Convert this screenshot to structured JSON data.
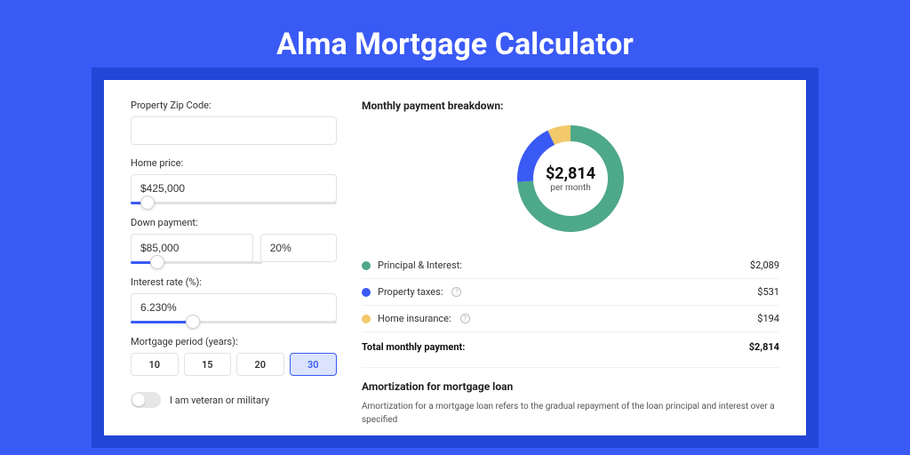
{
  "page": {
    "title": "Alma Mortgage Calculator",
    "background_color": "#3a5af5",
    "card_shadow_color": "#2446d6"
  },
  "form": {
    "zip_label": "Property Zip Code:",
    "zip_value": "",
    "home_price_label": "Home price:",
    "home_price_value": "$425,000",
    "home_price_slider_pct": 8,
    "down_payment_label": "Down payment:",
    "down_payment_amount": "$85,000",
    "down_payment_pct": "20%",
    "down_payment_slider_pct": 20,
    "interest_label": "Interest rate (%):",
    "interest_value": "6.230%",
    "interest_slider_pct": 30,
    "period_label": "Mortgage period (years):",
    "period_options": [
      "10",
      "15",
      "20",
      "30"
    ],
    "period_selected": "30",
    "veteran_label": "I am veteran or military",
    "veteran_on": false
  },
  "breakdown": {
    "title": "Monthly payment breakdown:",
    "center_amount": "$2,814",
    "center_sub": "per month",
    "donut": {
      "type": "donut",
      "ring_width": 18,
      "segments": [
        {
          "label": "Principal & Interest:",
          "value": "$2,089",
          "pct": 74,
          "color": "#4ea88a"
        },
        {
          "label": "Property taxes:",
          "value": "$531",
          "pct": 19,
          "color": "#3a5af5",
          "info": true
        },
        {
          "label": "Home insurance:",
          "value": "$194",
          "pct": 7,
          "color": "#f3c96b",
          "info": true
        }
      ]
    },
    "total_label": "Total monthly payment:",
    "total_value": "$2,814"
  },
  "amortization": {
    "title": "Amortization for mortgage loan",
    "text": "Amortization for a mortgage loan refers to the gradual repayment of the loan principal and interest over a specified"
  }
}
